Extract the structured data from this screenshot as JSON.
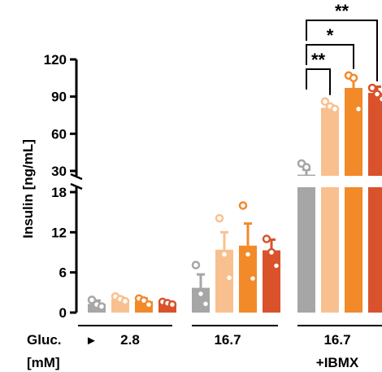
{
  "chart_data": {
    "type": "bar",
    "ylabel": "Insulin [ng/mL]",
    "y_axis_break": {
      "lower_range": [
        0,
        18
      ],
      "upper_range": [
        30,
        120
      ]
    },
    "yticks_lower": [
      0,
      6,
      12,
      18
    ],
    "yticks_upper": [
      30,
      60,
      90,
      120
    ],
    "x_prefix": {
      "line1": "Gluc.",
      "arrow": "►",
      "line2": "[mM]"
    },
    "groups": [
      {
        "label_line1": "2.8",
        "label_line2": ""
      },
      {
        "label_line1": "16.7",
        "label_line2": ""
      },
      {
        "label_line1": "16.7",
        "label_line2": "+IBMX"
      }
    ],
    "series": [
      {
        "color": "#a6a6a6",
        "values": [
          1.3,
          3.7,
          27
        ],
        "errors": [
          0.5,
          2.0,
          4
        ],
        "points": [
          [
            1.9,
            1.2,
            0.9
          ],
          [
            7.1,
            2.8,
            1.3
          ],
          [
            36,
            33,
            22
          ]
        ]
      },
      {
        "color": "#f9c08f",
        "values": [
          2.0,
          9.4,
          81
        ],
        "errors": [
          0.3,
          2.6,
          2
        ],
        "points": [
          [
            2.4,
            2.0,
            1.7
          ],
          [
            14.1,
            8.7,
            5.2
          ],
          [
            86,
            82,
            80
          ]
        ]
      },
      {
        "color": "#f28a2a",
        "values": [
          1.7,
          10.0,
          97
        ],
        "errors": [
          0.4,
          3.3,
          9
        ],
        "points": [
          [
            2.1,
            1.8,
            1.2
          ],
          [
            16.0,
            8.7,
            5.1
          ],
          [
            107,
            105,
            80
          ]
        ]
      },
      {
        "color": "#d9522c",
        "values": [
          1.4,
          9.3,
          93
        ],
        "errors": [
          0.2,
          1.6,
          5
        ],
        "points": [
          [
            1.6,
            1.4,
            1.2
          ],
          [
            11.0,
            9.0,
            7.0
          ],
          [
            97,
            92,
            88
          ]
        ]
      }
    ],
    "significance": [
      {
        "text": "**",
        "from_series": 0,
        "to_series": 1
      },
      {
        "text": "*",
        "from_series": 0,
        "to_series": 2
      },
      {
        "text": "**",
        "from_series": 0,
        "to_series": 3
      }
    ]
  }
}
